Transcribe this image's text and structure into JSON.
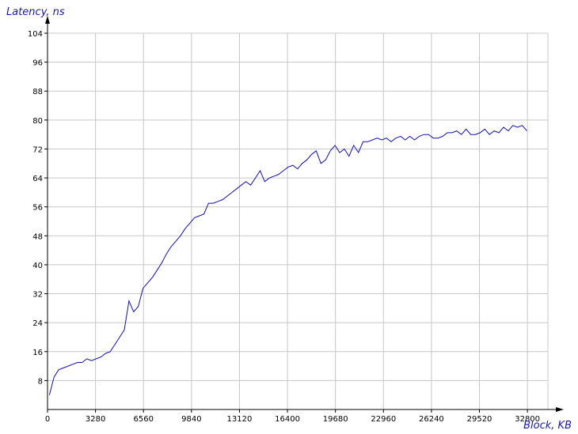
{
  "chart_data": {
    "type": "line",
    "ylabel": "Latency, ns",
    "xlabel": "Block, KB",
    "xlim": [
      0,
      34200
    ],
    "ylim": [
      0,
      104
    ],
    "xticks": [
      0,
      3280,
      6560,
      9840,
      13120,
      16400,
      19680,
      22960,
      26240,
      29520,
      32800
    ],
    "yticks": [
      8,
      16,
      24,
      32,
      40,
      48,
      56,
      64,
      72,
      80,
      88,
      96,
      104
    ],
    "grid": true,
    "colors": {
      "line": "#1010b0",
      "grid": "#c8c8c8",
      "axis_title": "#1a1aa6"
    },
    "series": [
      {
        "x": [
          128,
          448,
          768,
          1088,
          1408,
          1728,
          2048,
          2368,
          2688,
          3008,
          3328,
          3648,
          3968,
          4288,
          4608,
          4928,
          5248,
          5568,
          5888,
          6208,
          6528,
          6848,
          7168,
          7488,
          7808,
          8128,
          8448,
          8768,
          9088,
          9408,
          9728,
          10048,
          10368,
          10688,
          11008,
          11328,
          11648,
          11968,
          12288,
          12608,
          12928,
          13248,
          13568,
          13888,
          14208,
          14528,
          14848,
          15168,
          15488,
          15808,
          16128,
          16448,
          16768,
          17088,
          17408,
          17728,
          18048,
          18368,
          18688,
          19008,
          19328,
          19648,
          19968,
          20288,
          20608,
          20928,
          21248,
          21568,
          21888,
          22208,
          22528,
          22848,
          23168,
          23488,
          23808,
          24128,
          24448,
          24768,
          25088,
          25408,
          25728,
          26048,
          26368,
          26688,
          27008,
          27328,
          27648,
          27968,
          28288,
          28608,
          28928,
          29248,
          29568,
          29888,
          30208,
          30528,
          30848,
          31168,
          31488,
          31808,
          32128,
          32448,
          32768
        ],
        "values": [
          4,
          9,
          11,
          11.5,
          12,
          12.5,
          13,
          13,
          14,
          13.5,
          14,
          14.5,
          15.5,
          16,
          18,
          20,
          22,
          30,
          27,
          28.5,
          33.5,
          35,
          36.5,
          38.5,
          40.5,
          43,
          45,
          46.5,
          48,
          50,
          51.5,
          53,
          53.5,
          54,
          57,
          57,
          57.5,
          58,
          59,
          60,
          61,
          62,
          63,
          62,
          64,
          66,
          63,
          64,
          64.5,
          65,
          66,
          67,
          67.5,
          66.5,
          68,
          69,
          70.5,
          71.5,
          68,
          69,
          71.5,
          73,
          71,
          72,
          70,
          73,
          71,
          74,
          74,
          74.5,
          75,
          74.5,
          75,
          74,
          75,
          75.5,
          74.5,
          75.5,
          74.5,
          75.5,
          76,
          76,
          75,
          75,
          75.5,
          76.5,
          76.5,
          77,
          76,
          77.5,
          76,
          76,
          76.5,
          77.5,
          76,
          77,
          76.5,
          78,
          77,
          78.5,
          78,
          78.5,
          77
        ]
      }
    ]
  }
}
